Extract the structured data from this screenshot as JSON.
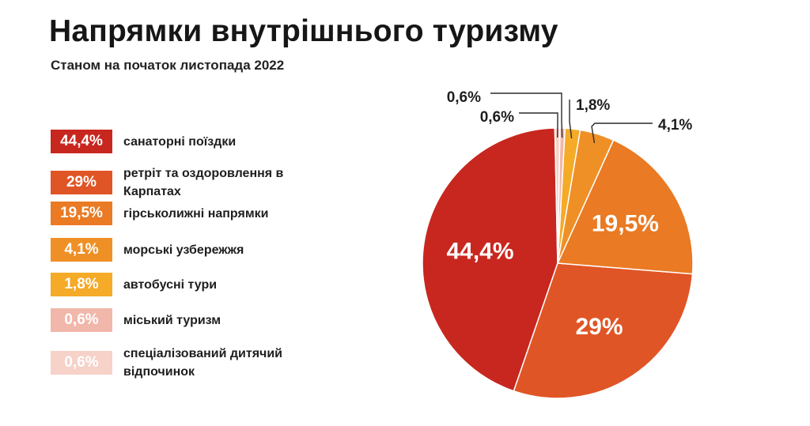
{
  "title": "Напрямки внутрішнього туризму",
  "subtitle": "Станом на початок листопада 2022",
  "legend": [
    {
      "value": "44,4%",
      "label": "санаторні поїздки",
      "color": "#c8271f",
      "text_color": "#ffffff"
    },
    {
      "value": "29%",
      "label": "ретріт та оздоровлення в Карпатах",
      "color": "#e05526",
      "text_color": "#ffffff"
    },
    {
      "value": "19,5%",
      "label": "гірськолижні напрямки",
      "color": "#ea7a23",
      "text_color": "#ffffff"
    },
    {
      "value": "4,1%",
      "label": "морські узбережжя",
      "color": "#ef9026",
      "text_color": "#ffffff"
    },
    {
      "value": "1,8%",
      "label": "автобусні тури",
      "color": "#f5aa28",
      "text_color": "#ffffff"
    },
    {
      "value": "0,6%",
      "label": "міський туризм",
      "color": "#f1b7aa",
      "text_color": "#ffffff"
    },
    {
      "value": "0,6%",
      "label": "спеціалізований дитячий відпочинок",
      "color": "#f6d2c9",
      "text_color": "#ffffff"
    }
  ],
  "chart_data": {
    "type": "pie",
    "title": "Напрямки внутрішнього туризму",
    "subtitle": "Станом на початок листопада 2022",
    "slices": [
      {
        "label": "санаторні поїздки",
        "value": 44.4,
        "display": "44,4%",
        "color": "#c8271f"
      },
      {
        "label": "ретріт та оздоровлення в Карпатах",
        "value": 29,
        "display": "29%",
        "color": "#e05526"
      },
      {
        "label": "гірськолижні напрямки",
        "value": 19.5,
        "display": "19,5%",
        "color": "#ea7a23"
      },
      {
        "label": "морські узбережжя",
        "value": 4.1,
        "display": "4,1%",
        "color": "#ef9026"
      },
      {
        "label": "автобусні тури",
        "value": 1.8,
        "display": "1,8%",
        "color": "#f5aa28"
      },
      {
        "label": "міський туризм",
        "value": 0.6,
        "display": "0,6%",
        "color": "#f1b7aa"
      },
      {
        "label": "спеціалізований дитячий відпочинок",
        "value": 0.6,
        "display": "0,6%",
        "color": "#f6d2c9"
      }
    ]
  }
}
